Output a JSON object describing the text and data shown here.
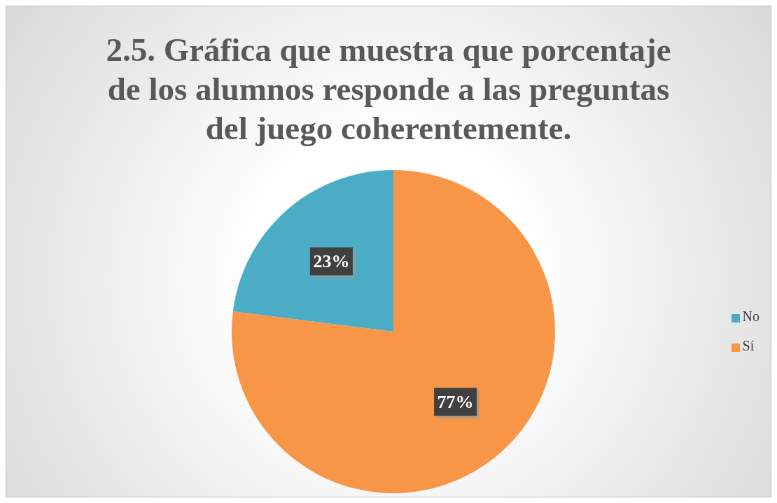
{
  "chart_data": {
    "type": "pie",
    "title": "2.5. Gráfica que muestra que porcentaje de los alumnos responde a las preguntas del juego coherentemente.",
    "categories": [
      "Sí",
      "No"
    ],
    "values": [
      77,
      23
    ],
    "colors": [
      "#f79646",
      "#4bacc6"
    ],
    "value_labels": [
      "77%",
      "23%"
    ],
    "legend": "right"
  }
}
